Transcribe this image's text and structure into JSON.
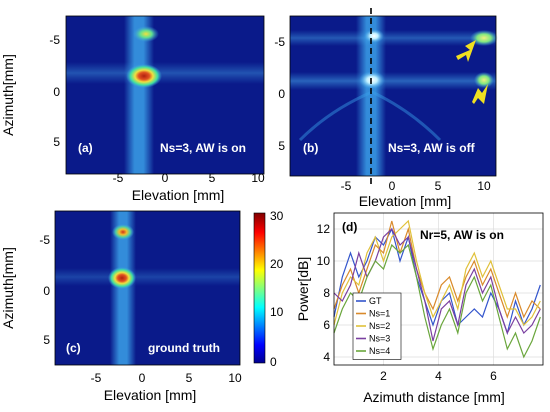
{
  "panels": {
    "a": {
      "tag": "(a)",
      "caption": "Ns=3, AW is on"
    },
    "b": {
      "tag": "(b)",
      "caption": "Ns=3, AW is off"
    },
    "c": {
      "tag": "(c)",
      "caption": "ground truth"
    },
    "d": {
      "tag": "(d)",
      "caption": "Nr=5, AW is on"
    }
  },
  "axes": {
    "elevation_label": "Elevation  [mm]",
    "azimuth_label": "Azimuth[mm]",
    "power_label": "Power[dB]",
    "azimuth_distance_label": "Azimuth distance [mm]",
    "elevation_ticks": [
      "-5",
      "0",
      "5",
      "10"
    ],
    "azimuth_ticks": [
      "-5",
      "0",
      "5"
    ],
    "colorbar_ticks": [
      "30",
      "20",
      "10",
      "0"
    ]
  },
  "chart_data": {
    "type": "line",
    "title": "Nr=5, AW is on",
    "xlabel": "Azimuth distance [mm]",
    "ylabel": "Power[dB]",
    "xlim": [
      0.2,
      7.8
    ],
    "ylim": [
      3.5,
      13
    ],
    "xticks": [
      "2",
      "4",
      "6"
    ],
    "yticks": [
      "4",
      "6",
      "8",
      "10",
      "12"
    ],
    "grid": true,
    "legend_position": "bottom-left",
    "series": [
      {
        "name": "GT",
        "color": "#3355cc",
        "x": [
          0.2,
          0.5,
          0.8,
          1.1,
          1.4,
          1.7,
          2.0,
          2.3,
          2.6,
          2.9,
          3.2,
          3.5,
          3.8,
          4.1,
          4.4,
          4.7,
          5.0,
          5.3,
          5.6,
          5.9,
          6.2,
          6.5,
          6.8,
          7.1,
          7.4,
          7.7
        ],
        "y": [
          6.5,
          9.0,
          10.5,
          9.0,
          10.0,
          11.5,
          11.0,
          12.0,
          10.0,
          11.5,
          9.0,
          7.5,
          6.0,
          7.5,
          8.0,
          6.0,
          6.5,
          7.0,
          6.5,
          8.0,
          7.0,
          5.5,
          7.5,
          6.0,
          7.0,
          8.5
        ]
      },
      {
        "name": "Ns=1",
        "color": "#d98a2b",
        "x": [
          0.2,
          0.5,
          0.8,
          1.1,
          1.4,
          1.7,
          2.0,
          2.3,
          2.6,
          2.9,
          3.2,
          3.5,
          3.8,
          4.1,
          4.4,
          4.7,
          5.0,
          5.3,
          5.6,
          5.9,
          6.2,
          6.5,
          6.8,
          7.1,
          7.4,
          7.7
        ],
        "y": [
          7.0,
          8.5,
          9.5,
          8.0,
          9.5,
          11.0,
          10.5,
          12.5,
          10.5,
          12.0,
          9.5,
          8.0,
          7.0,
          8.5,
          9.0,
          7.5,
          9.0,
          10.0,
          8.5,
          9.5,
          8.0,
          6.5,
          8.0,
          6.5,
          7.5,
          7.0
        ]
      },
      {
        "name": "Ns=2",
        "color": "#e0c13a",
        "x": [
          0.2,
          0.5,
          0.8,
          1.1,
          1.4,
          1.7,
          2.0,
          2.3,
          2.6,
          2.9,
          3.2,
          3.5,
          3.8,
          4.1,
          4.4,
          4.7,
          5.0,
          5.3,
          5.6,
          5.9,
          6.2,
          6.5,
          6.8,
          7.1,
          7.4,
          7.7
        ],
        "y": [
          6.0,
          8.0,
          9.0,
          8.5,
          10.5,
          11.5,
          10.0,
          11.5,
          12.0,
          12.5,
          10.0,
          8.0,
          6.5,
          7.5,
          8.5,
          7.0,
          9.5,
          10.5,
          9.0,
          10.0,
          8.5,
          7.0,
          7.0,
          6.0,
          6.5,
          7.5
        ]
      },
      {
        "name": "Ns=3",
        "color": "#7a3fa0",
        "x": [
          0.2,
          0.5,
          0.8,
          1.1,
          1.4,
          1.7,
          2.0,
          2.3,
          2.6,
          2.9,
          3.2,
          3.5,
          3.8,
          4.1,
          4.4,
          4.7,
          5.0,
          5.3,
          5.6,
          5.9,
          6.2,
          6.5,
          6.8,
          7.1,
          7.4,
          7.7
        ],
        "y": [
          8.0,
          7.5,
          8.5,
          10.5,
          9.0,
          10.0,
          11.5,
          12.0,
          11.0,
          11.5,
          9.5,
          7.5,
          5.0,
          7.0,
          7.5,
          6.0,
          8.5,
          9.5,
          8.0,
          9.0,
          7.0,
          5.5,
          6.5,
          5.5,
          6.0,
          7.0
        ]
      },
      {
        "name": "Ns=4",
        "color": "#6aa63c",
        "x": [
          0.2,
          0.5,
          0.8,
          1.1,
          1.4,
          1.7,
          2.0,
          2.3,
          2.6,
          2.9,
          3.2,
          3.5,
          3.8,
          4.1,
          4.4,
          4.7,
          5.0,
          5.3,
          5.6,
          5.9,
          6.2,
          6.5,
          6.8,
          7.1,
          7.4,
          7.7
        ],
        "y": [
          5.5,
          7.0,
          8.0,
          7.5,
          9.0,
          10.0,
          9.5,
          11.0,
          10.5,
          11.0,
          9.0,
          6.5,
          4.5,
          6.0,
          7.0,
          5.5,
          8.0,
          9.0,
          7.5,
          8.5,
          6.5,
          4.5,
          5.5,
          4.0,
          5.0,
          6.5
        ]
      }
    ]
  },
  "colors": {
    "map_background": "#0a1a8a",
    "map_stripe": "#3aa0e8",
    "spot_core": "#c03020",
    "spot_ring": "#f0e040",
    "arrow": "#f0e020"
  }
}
